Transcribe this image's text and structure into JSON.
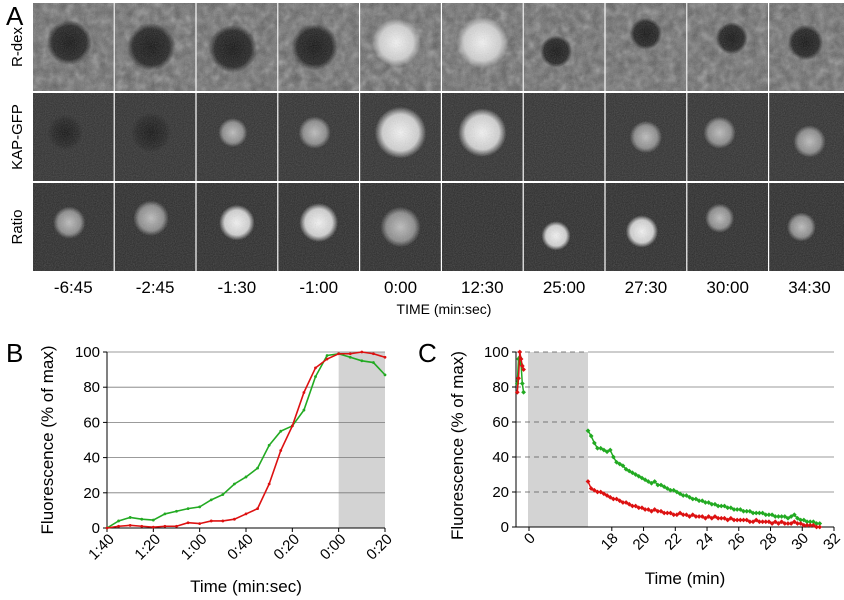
{
  "panel_a": {
    "label": "A",
    "row_labels": [
      "R-dex",
      "KAP-GFP",
      "Ratio"
    ],
    "time_labels": [
      "-6:45",
      "-2:45",
      "-1:30",
      "-1:00",
      "0:00",
      "12:30",
      "25:00",
      "27:30",
      "30:00",
      "34:30"
    ],
    "axis_label": "TIME (min:sec)"
  },
  "panel_b": {
    "label": "B"
  },
  "panel_c": {
    "label": "C"
  },
  "colors": {
    "green": "#22aa22",
    "red": "#dd1111",
    "shade": "#d3d3d3",
    "grid": "#7a7a7a"
  },
  "chart_data": [
    {
      "id": "B",
      "type": "line",
      "xlabel": "Time (min:sec)",
      "ylabel": "Fluorescence (% of max)",
      "x_tick_labels": [
        "1:40",
        "1:20",
        "1:00",
        "0:40",
        "0:20",
        "0:00",
        "0:20"
      ],
      "x_tick_values": [
        -100,
        -80,
        -60,
        -40,
        -20,
        0,
        20
      ],
      "xlim": [
        -100,
        20
      ],
      "ylim": [
        0,
        100
      ],
      "y_ticks": [
        0,
        20,
        40,
        60,
        80,
        100
      ],
      "grid": true,
      "shaded_region_x": [
        0,
        20
      ],
      "series": [
        {
          "color": "green",
          "x": [
            -100,
            -95,
            -90,
            -85,
            -80,
            -75,
            -70,
            -65,
            -60,
            -55,
            -50,
            -45,
            -40,
            -35,
            -30,
            -25,
            -20,
            -15,
            -10,
            -5,
            0,
            5,
            10,
            15,
            20
          ],
          "y": [
            0,
            4,
            6,
            5,
            4.5,
            8,
            9.5,
            11,
            12,
            16,
            19,
            25,
            29,
            34,
            47,
            55,
            58,
            67,
            86,
            98,
            99,
            97,
            95,
            94,
            87
          ]
        },
        {
          "color": "red",
          "x": [
            -100,
            -95,
            -90,
            -85,
            -80,
            -75,
            -70,
            -65,
            -60,
            -55,
            -50,
            -45,
            -40,
            -35,
            -30,
            -25,
            -20,
            -15,
            -10,
            -5,
            0,
            5,
            10,
            15,
            20
          ],
          "y": [
            0,
            1,
            1.5,
            1,
            0.5,
            1,
            1,
            3,
            2.5,
            4,
            4,
            5,
            8,
            11,
            25,
            44,
            58,
            77,
            91,
            96,
            99,
            99,
            100,
            99,
            97
          ]
        }
      ]
    },
    {
      "id": "C",
      "type": "line",
      "xlabel": "Time (min)",
      "ylabel": "Fluorescence (% of max)",
      "x_ticks": [
        0,
        18,
        20,
        22,
        24,
        26,
        28,
        30,
        32
      ],
      "y_ticks": [
        0,
        20,
        40,
        60,
        80,
        100
      ],
      "ylim": [
        0,
        100
      ],
      "grid": true,
      "shaded_region": "0 to 16.5 min (axis break)",
      "series": [
        {
          "color": "green",
          "x": [
            -0.3,
            0,
            0.3,
            0.6,
            0.9,
            1.2
          ],
          "y": [
            82,
            96,
            97,
            93,
            82,
            77
          ]
        },
        {
          "color": "red",
          "x": [
            -0.3,
            0,
            0.3,
            0.6,
            0.9,
            1.2
          ],
          "y": [
            77,
            85,
            100,
            96,
            92,
            90
          ]
        },
        {
          "color": "green",
          "x": [
            16.5,
            16.7,
            16.9,
            17.1,
            17.3,
            17.5,
            17.7,
            17.9,
            18.1,
            18.3,
            18.5,
            18.7,
            18.9,
            19.1,
            19.3,
            19.5,
            19.7,
            19.9,
            20.1,
            20.3,
            20.5,
            20.7,
            20.9,
            21.1,
            21.3,
            21.5,
            21.7,
            21.9,
            22.1,
            22.3,
            22.5,
            22.7,
            22.9,
            23.1,
            23.3,
            23.5,
            23.7,
            23.9,
            24.1,
            24.3,
            24.5,
            24.7,
            24.9,
            25.1,
            25.3,
            25.5,
            25.7,
            25.9,
            26.1,
            26.3,
            26.5,
            26.7,
            26.9,
            27.1,
            27.3,
            27.5,
            27.7,
            27.9,
            28.1,
            28.3,
            28.5,
            28.7,
            28.9,
            29.1,
            29.3,
            29.5,
            29.7,
            29.9,
            30.1,
            30.3,
            30.5,
            30.7,
            30.9,
            31.1
          ],
          "y": [
            55,
            52,
            48,
            45,
            45,
            44,
            43,
            44,
            40,
            37,
            36,
            35,
            33,
            32,
            31,
            30,
            29,
            28,
            27,
            26,
            25,
            26,
            24,
            24,
            23,
            22,
            21,
            21,
            20,
            19,
            18,
            18,
            17,
            16,
            16,
            15,
            15,
            14,
            14,
            13,
            13,
            12,
            12,
            12,
            11,
            11,
            10,
            10,
            10,
            9,
            9,
            9,
            8,
            8,
            8,
            8,
            7,
            7,
            7,
            6,
            6,
            6,
            6,
            5,
            6,
            7,
            5,
            4,
            4,
            3,
            3,
            3,
            2,
            2
          ]
        },
        {
          "color": "red",
          "x": [
            16.5,
            16.7,
            16.9,
            17.1,
            17.3,
            17.5,
            17.7,
            17.9,
            18.1,
            18.3,
            18.5,
            18.7,
            18.9,
            19.1,
            19.3,
            19.5,
            19.7,
            19.9,
            20.1,
            20.3,
            20.5,
            20.7,
            20.9,
            21.1,
            21.3,
            21.5,
            21.7,
            21.9,
            22.1,
            22.3,
            22.5,
            22.7,
            22.9,
            23.1,
            23.3,
            23.5,
            23.7,
            23.9,
            24.1,
            24.3,
            24.5,
            24.7,
            24.9,
            25.1,
            25.3,
            25.5,
            25.7,
            25.9,
            26.1,
            26.3,
            26.5,
            26.7,
            26.9,
            27.1,
            27.3,
            27.5,
            27.7,
            27.9,
            28.1,
            28.3,
            28.5,
            28.7,
            28.9,
            29.1,
            29.3,
            29.5,
            29.7,
            29.9,
            30.1,
            30.3,
            30.5,
            30.7,
            30.9,
            31.1
          ],
          "y": [
            26,
            22,
            21,
            20,
            20,
            19,
            18,
            17,
            16,
            16,
            15,
            14,
            14,
            13,
            12,
            12,
            11,
            11,
            10,
            10,
            9,
            10,
            9,
            9,
            8,
            8,
            8,
            7,
            7,
            8,
            7,
            7,
            6,
            7,
            6,
            6,
            6,
            5,
            6,
            5,
            6,
            5,
            5,
            5,
            4,
            5,
            4,
            4,
            4,
            4,
            4,
            3,
            3,
            4,
            3,
            3,
            3,
            3,
            2,
            3,
            2,
            3,
            2,
            2,
            2,
            3,
            2,
            2,
            1,
            1,
            1,
            1,
            0,
            0
          ]
        }
      ]
    }
  ]
}
